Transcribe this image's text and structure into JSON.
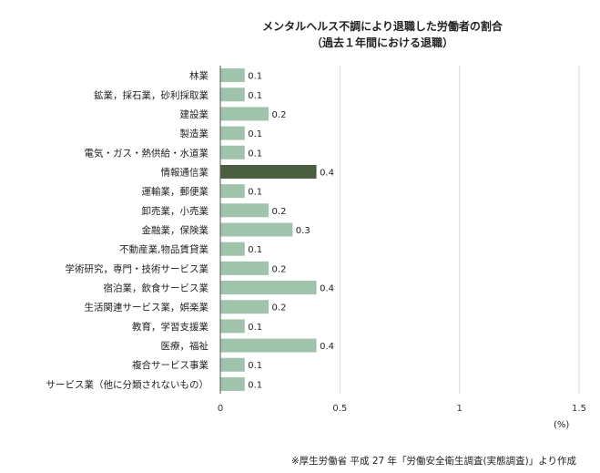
{
  "chart_data": {
    "type": "bar",
    "orientation": "horizontal",
    "title": "メンタルヘルス不調により退職した労働者の割合",
    "subtitle": "（過去１年間における退職）",
    "xlabel": "(%)",
    "ylabel": "",
    "xlim": [
      0,
      1.5
    ],
    "xticks": [
      0,
      0.5,
      1,
      1.5
    ],
    "xtick_labels": [
      "0",
      "0.5",
      "1",
      "1.5"
    ],
    "grid": true,
    "categories": [
      "林業",
      "鉱業，採石業，砂利採取業",
      "建設業",
      "製造業",
      "電気・ガス・熱供給・水道業",
      "情報通信業",
      "運輸業，郵便業",
      "卸売業，小売業",
      "金融業，保険業",
      "不動産業,物品賃貸業",
      "学術研究，専門・技術サービス業",
      "宿泊業，飲食サービス業",
      "生活関連サービス業，娯楽業",
      "教育，学習支援業",
      "医療，福祉",
      "複合サービス事業",
      "サービス業（他に分類されないもの）"
    ],
    "values": [
      0.1,
      0.1,
      0.2,
      0.1,
      0.1,
      0.4,
      0.1,
      0.2,
      0.3,
      0.1,
      0.2,
      0.4,
      0.2,
      0.1,
      0.4,
      0.1,
      0.1
    ],
    "data_labels": [
      "0.1",
      "0.1",
      "0.2",
      "0.1",
      "0.1",
      "0.4",
      "0.1",
      "0.2",
      "0.3",
      "0.1",
      "0.2",
      "0.4",
      "0.2",
      "0.1",
      "0.4",
      "0.1",
      "0.1"
    ],
    "highlight_index": 5,
    "colors": {
      "bar": "#9fc3ab",
      "highlight": "#4a5f3f",
      "grid": "#d9d9d9",
      "axis": "#555555"
    },
    "source_note": "※厚生労働省 平成 27 年「労働安全衛生調査(実態調査)」より作成"
  }
}
